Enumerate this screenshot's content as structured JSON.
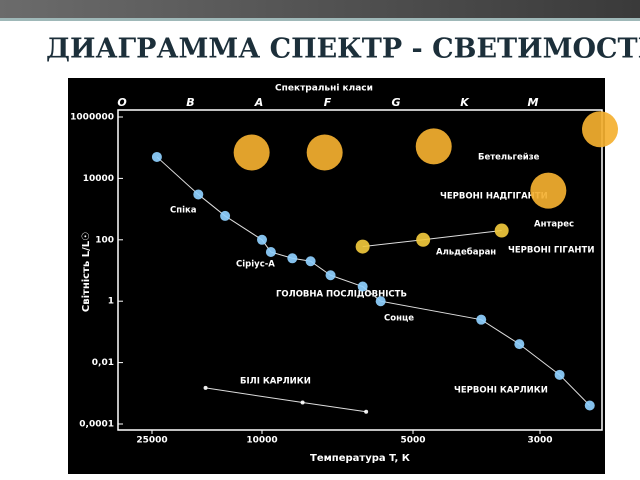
{
  "chart_data": {
    "type": "scatter",
    "title": "ДИАГРАММА СПЕКТР - СВЕТИМОСТЬ",
    "top_axis_label": "Спектральні класи",
    "categories": [
      "O",
      "B",
      "A",
      "F",
      "G",
      "K",
      "M"
    ],
    "x_label": "Температура T, К",
    "y_label": "Світність L/L☉",
    "log_x": true,
    "log_y": true,
    "xlim": [
      32000,
      2350
    ],
    "xticks": [
      25000,
      10000,
      5000,
      3000
    ],
    "ylim": [
      0.0001,
      1000000
    ],
    "yticks": [
      1000000,
      10000,
      100,
      1,
      {
        "value": 0.01,
        "label": "0,01"
      },
      {
        "value": 0.0001,
        "label": "0,0001"
      }
    ],
    "series": [
      {
        "color": "#8fd0ff",
        "x": [
          24000,
          17000,
          13600,
          10000,
          9600,
          8700,
          8000,
          7300,
          6300,
          5800,
          3800,
          3260,
          2770,
          2450
        ],
        "values": [
          50000,
          3000,
          600,
          100,
          40,
          25,
          20,
          7,
          3,
          1,
          0.25,
          0.04,
          0.004,
          0.0004
        ]
      },
      {
        "color": "#f0c83c",
        "x": [
          6300,
          4800,
          3500
        ],
        "values": [
          60,
          100,
          200
        ]
      },
      {
        "color": "#f4b030",
        "x": [
          10900,
          7500,
          4600,
          2900,
          2350
        ],
        "values": [
          70000,
          70000,
          110000,
          4000,
          400000
        ]
      },
      {
        "color": "#ffffff",
        "x": [
          16000,
          8300,
          6200
        ],
        "values": [
          0.0015,
          0.0005,
          0.00025
        ]
      }
    ],
    "annotations": [
      "Бетельгейзе",
      "ЧЕРВОНІ НАДГІГАНТИ",
      "Антарес",
      "ЧЕРВОНІ ГІГАНТИ",
      "Альдебаран",
      "Спіка",
      "Сіріус-А",
      "ГОЛОВНА ПОСЛІДОВНІСТЬ",
      "Сонце",
      "БІЛІ КАРЛИКИ",
      "ЧЕРВОНІ КАРЛИКИ"
    ]
  }
}
